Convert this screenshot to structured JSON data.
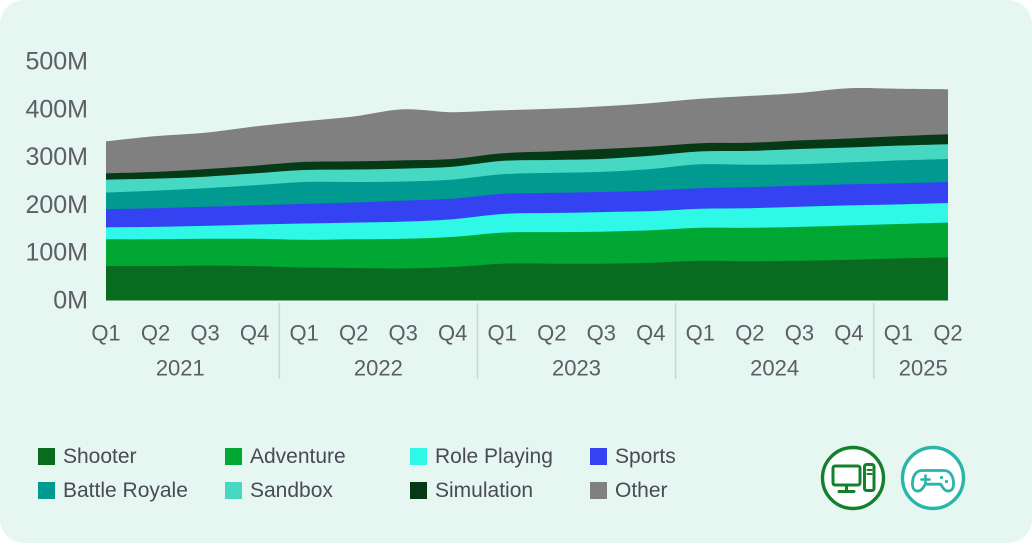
{
  "colors": {
    "card_bg": "#e6f7f2",
    "page_bg": "#ffffff",
    "axis_text": "#5d5d66",
    "legend_text": "#4a4a55",
    "separator": "#c8d8d3"
  },
  "chart_data": {
    "type": "area",
    "stacked": true,
    "unit": "M",
    "ylim": [
      0,
      500
    ],
    "grid": false,
    "legend_position": "bottom",
    "y_ticks": [
      {
        "label": "0M",
        "value": 0
      },
      {
        "label": "100M",
        "value": 100
      },
      {
        "label": "200M",
        "value": 200
      },
      {
        "label": "300M",
        "value": 300
      },
      {
        "label": "400M",
        "value": 400
      },
      {
        "label": "500M",
        "value": 500
      }
    ],
    "x_labels": [
      "Q1",
      "Q2",
      "Q3",
      "Q4",
      "Q1",
      "Q2",
      "Q3",
      "Q4",
      "Q1",
      "Q2",
      "Q3",
      "Q4",
      "Q1",
      "Q2",
      "Q3",
      "Q4",
      "Q1",
      "Q2"
    ],
    "year_groups": [
      {
        "label": "2021",
        "count": 4
      },
      {
        "label": "2022",
        "count": 4
      },
      {
        "label": "2023",
        "count": 4
      },
      {
        "label": "2024",
        "count": 4
      },
      {
        "label": "2025",
        "count": 2
      }
    ],
    "series": [
      {
        "name": "Shooter",
        "color": "#086b1f",
        "values": [
          72,
          72,
          73,
          72,
          69,
          68,
          67,
          70,
          77,
          77,
          77,
          79,
          83,
          82,
          83,
          85,
          88,
          90
        ]
      },
      {
        "name": "Adventure",
        "color": "#00a733",
        "values": [
          56,
          56,
          56,
          57,
          58,
          60,
          62,
          63,
          65,
          66,
          67,
          68,
          69,
          70,
          71,
          72,
          72,
          73
        ]
      },
      {
        "name": "Role Playing",
        "color": "#2ff9e6",
        "values": [
          25,
          26,
          27,
          30,
          34,
          35,
          36,
          37,
          39,
          40,
          41,
          40,
          40,
          41,
          42,
          42,
          41,
          41
        ]
      },
      {
        "name": "Sports",
        "color": "#3542f1",
        "values": [
          38,
          39,
          40,
          40,
          41,
          42,
          44,
          43,
          42,
          42,
          42,
          43,
          43,
          44,
          44,
          44,
          44,
          44
        ]
      },
      {
        "name": "Battle Royale",
        "color": "#009a90",
        "values": [
          35,
          37,
          39,
          42,
          46,
          43,
          40,
          40,
          41,
          42,
          42,
          45,
          50,
          47,
          45,
          46,
          48,
          48
        ]
      },
      {
        "name": "Sandbox",
        "color": "#47d8c4",
        "values": [
          27,
          25,
          24,
          25,
          25,
          26,
          27,
          27,
          28,
          27,
          27,
          28,
          27,
          29,
          32,
          31,
          31,
          31
        ]
      },
      {
        "name": "Simulation",
        "color": "#063916",
        "values": [
          13,
          14,
          16,
          16,
          17,
          17,
          17,
          16,
          16,
          18,
          21,
          19,
          17,
          17,
          18,
          19,
          20,
          21
        ]
      },
      {
        "name": "Other",
        "color": "#808080",
        "values": [
          67,
          75,
          76,
          82,
          85,
          94,
          107,
          98,
          90,
          89,
          89,
          91,
          93,
          98,
          99,
          105,
          99,
          94
        ]
      }
    ]
  },
  "icons": {
    "pc": {
      "semantic": "desktop-pc-icon",
      "color": "#13802b"
    },
    "gamepad": {
      "semantic": "gamepad-icon",
      "color": "#2ab5aa"
    }
  }
}
